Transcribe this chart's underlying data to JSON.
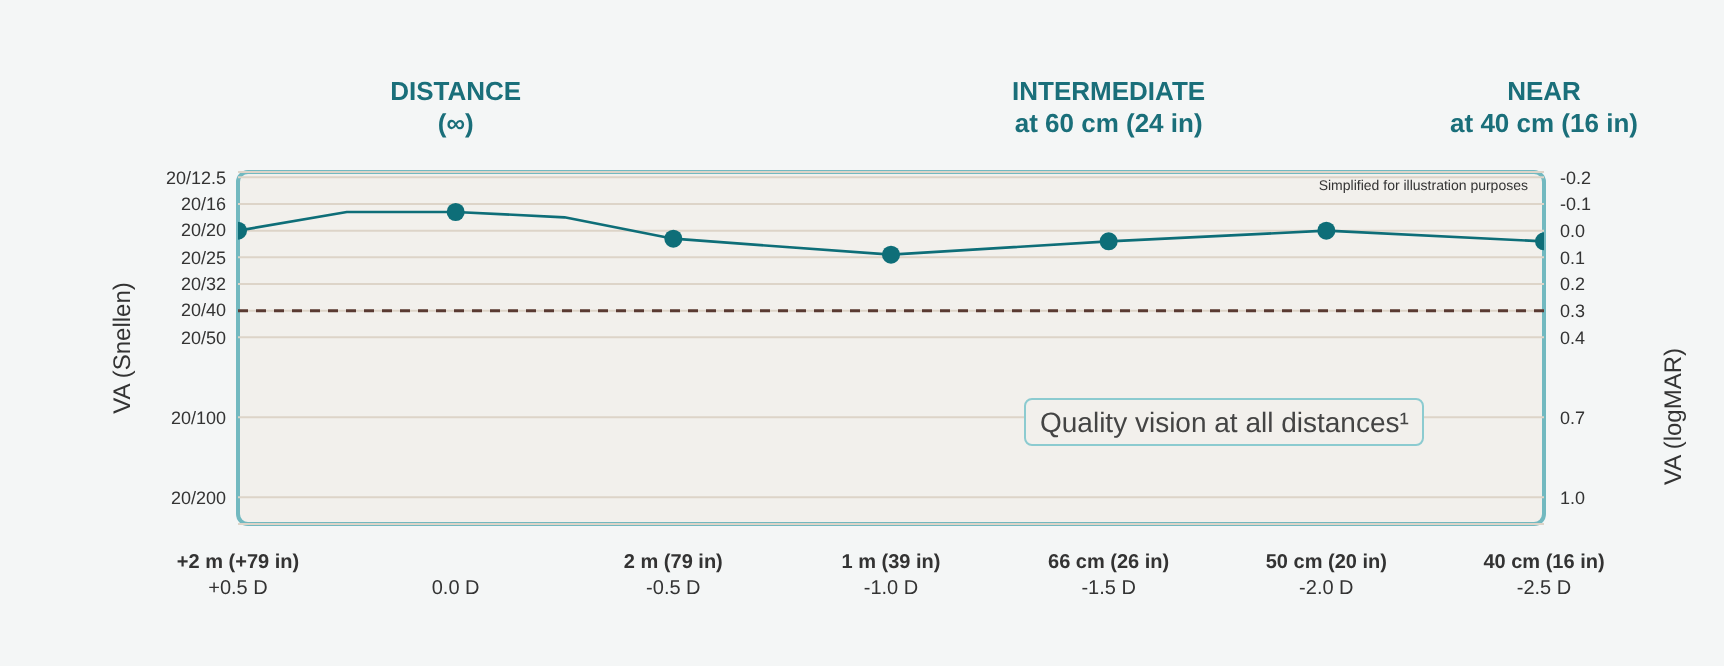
{
  "chart_data": {
    "type": "line",
    "ylabel": "VA (logMAR)",
    "categories": [
      "+2 m (+79 in)\n+0.5 D",
      null,
      "0.0 D",
      null,
      "2 m (79 in)\n-0.5 D",
      null,
      "1 m (39 in)\n-1.0 D",
      null,
      "66 cm (26 in)\n-1.5 D",
      null,
      "50 cm (20 in)\n-2.0 D",
      null,
      "40 cm (16 in)\n-2.5 D"
    ],
    "ylim": [
      1.1,
      -0.22
    ],
    "yticks": [
      -0.2,
      -0.1,
      {
        "value": 0,
        "label": "0.0"
      },
      0.1,
      0.2,
      0.3,
      0.4,
      0.7,
      {
        "value": 1,
        "label": "1.0"
      }
    ],
    "grid": "y",
    "series": [
      {
        "color": "#0e6e78",
        "marker": "none",
        "values": [
          0,
          -0.07,
          -0.07,
          -0.05,
          0.03,
          null,
          0.09,
          null,
          0.04,
          null,
          0,
          null,
          0.04
        ]
      },
      {
        "type": "scatter",
        "color": "#0e6e78",
        "marker": "circle",
        "values": [
          0,
          null,
          -0.07,
          null,
          0.03,
          null,
          0.09,
          null,
          0.04,
          null,
          0,
          null,
          0.04
        ]
      }
    ],
    "ref_lines": [
      {
        "axis": "y",
        "value": 0.3,
        "color": "#5a3a32",
        "line_style": "dashed"
      }
    ],
    "annotations": [
      "DISTANCE\n(∞)",
      "INTERMEDIATE\nat 60 cm (24 in)",
      "NEAR\nat 40 cm (16 in)",
      "Simplified for illustration purposes",
      "Quality vision at all distances¹",
      "VA (Snellen)",
      "20/12.5",
      "20/16",
      "20/20",
      "20/25",
      "20/32",
      "20/40",
      "20/50",
      "20/100",
      "20/200"
    ]
  }
}
